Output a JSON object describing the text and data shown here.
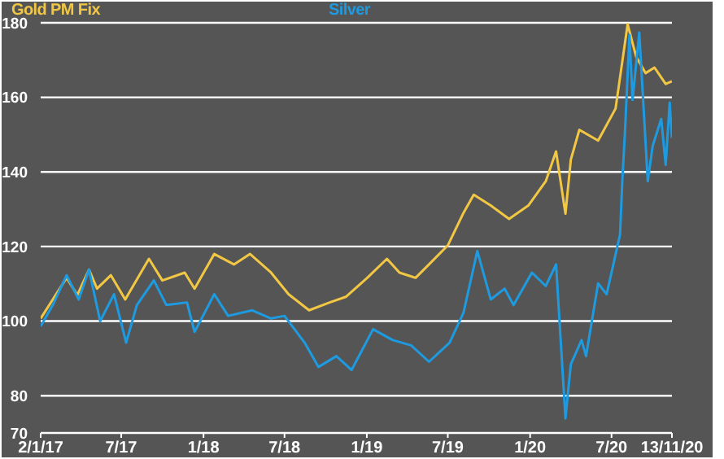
{
  "chart_data": {
    "type": "line",
    "legend": "top",
    "grid": "y",
    "line_style": "solid",
    "marker": "none",
    "xlim": [
      "2017-01-02",
      "2020-11-13"
    ],
    "xticks": [
      {
        "value": "2017-01-02",
        "label": "2/1/17"
      },
      {
        "value": "2017-07-01",
        "label": "7/17"
      },
      {
        "value": "2018-01-01",
        "label": "1/18"
      },
      {
        "value": "2018-07-01",
        "label": "7/18"
      },
      {
        "value": "2019-01-01",
        "label": "1/19"
      },
      {
        "value": "2019-07-01",
        "label": "7/19"
      },
      {
        "value": "2020-01-01",
        "label": "1/20"
      },
      {
        "value": "2020-07-01",
        "label": "7/20"
      },
      {
        "value": "2020-11-13",
        "label": "13/11/20"
      }
    ],
    "ylim": [
      70,
      180
    ],
    "yticks": [
      70,
      80,
      100,
      120,
      140,
      160,
      180
    ],
    "series": [
      {
        "name": "Gold PM Fix",
        "color": "#f2c744",
        "x": [
          "2017-01-02",
          "2017-01-29",
          "2017-03-01",
          "2017-03-25",
          "2017-04-20",
          "2017-05-08",
          "2017-06-08",
          "2017-07-10",
          "2017-09-01",
          "2017-10-01",
          "2017-11-20",
          "2017-12-12",
          "2018-01-25",
          "2018-03-10",
          "2018-04-15",
          "2018-06-01",
          "2018-07-10",
          "2018-08-25",
          "2018-10-10",
          "2018-11-15",
          "2019-01-02",
          "2019-02-15",
          "2019-03-15",
          "2019-04-20",
          "2019-05-20",
          "2019-07-01",
          "2019-08-05",
          "2019-08-28",
          "2019-10-05",
          "2019-11-15",
          "2019-12-28",
          "2020-02-05",
          "2020-02-28",
          "2020-03-20",
          "2020-04-01",
          "2020-04-20",
          "2020-06-01",
          "2020-07-10",
          "2020-08-06",
          "2020-08-25",
          "2020-09-15",
          "2020-10-05",
          "2020-10-30",
          "2020-11-13"
        ],
        "values": [
          100.7,
          105.8,
          111.6,
          107,
          113.8,
          108.7,
          112.3,
          105.8,
          116.7,
          110.9,
          113,
          108.7,
          118,
          115.2,
          118,
          113,
          107.2,
          102.9,
          105,
          106.5,
          111.6,
          116.7,
          113,
          111.6,
          115.2,
          120.3,
          129,
          133.9,
          131,
          127.4,
          131,
          137.5,
          145.5,
          128.8,
          143.3,
          151.3,
          148.4,
          157,
          179.6,
          170.9,
          166.5,
          168,
          163.6,
          164.3
        ]
      },
      {
        "name": "Silver",
        "color": "#1e9be0",
        "x": [
          "2017-01-02",
          "2017-01-29",
          "2017-03-01",
          "2017-03-28",
          "2017-04-20",
          "2017-05-15",
          "2017-06-15",
          "2017-07-12",
          "2017-08-05",
          "2017-09-12",
          "2017-10-10",
          "2017-11-25",
          "2017-12-12",
          "2018-01-25",
          "2018-02-25",
          "2018-04-20",
          "2018-06-01",
          "2018-07-01",
          "2018-08-15",
          "2018-09-15",
          "2018-10-25",
          "2018-11-28",
          "2019-01-15",
          "2019-02-28",
          "2019-04-10",
          "2019-05-20",
          "2019-07-05",
          "2019-08-05",
          "2019-09-05",
          "2019-10-05",
          "2019-11-05",
          "2019-11-25",
          "2020-01-05",
          "2020-02-05",
          "2020-02-28",
          "2020-03-20",
          "2020-04-01",
          "2020-04-25",
          "2020-05-05",
          "2020-06-01",
          "2020-06-20",
          "2020-07-20",
          "2020-07-25",
          "2020-07-31",
          "2020-08-10",
          "2020-08-17",
          "2020-09-01",
          "2020-09-20",
          "2020-10-01",
          "2020-10-20",
          "2020-10-30",
          "2020-11-08",
          "2020-11-13"
        ],
        "values": [
          98.6,
          104.3,
          112.3,
          105.8,
          113.8,
          100,
          107.2,
          94.2,
          104.3,
          110.9,
          104.3,
          105,
          97.1,
          107.2,
          101.4,
          102.9,
          100.7,
          101.4,
          94.2,
          87.7,
          90.6,
          86.9,
          97.8,
          94.9,
          93.5,
          89.1,
          94.2,
          102.2,
          118.8,
          105.8,
          108.7,
          104.3,
          113,
          109.4,
          115.2,
          73.9,
          88.4,
          94.9,
          90.6,
          110.1,
          107.2,
          123.2,
          137.5,
          150.6,
          176.7,
          159.3,
          177.4,
          137.5,
          147,
          154.2,
          141.9,
          158.6,
          149.1
        ]
      }
    ]
  }
}
